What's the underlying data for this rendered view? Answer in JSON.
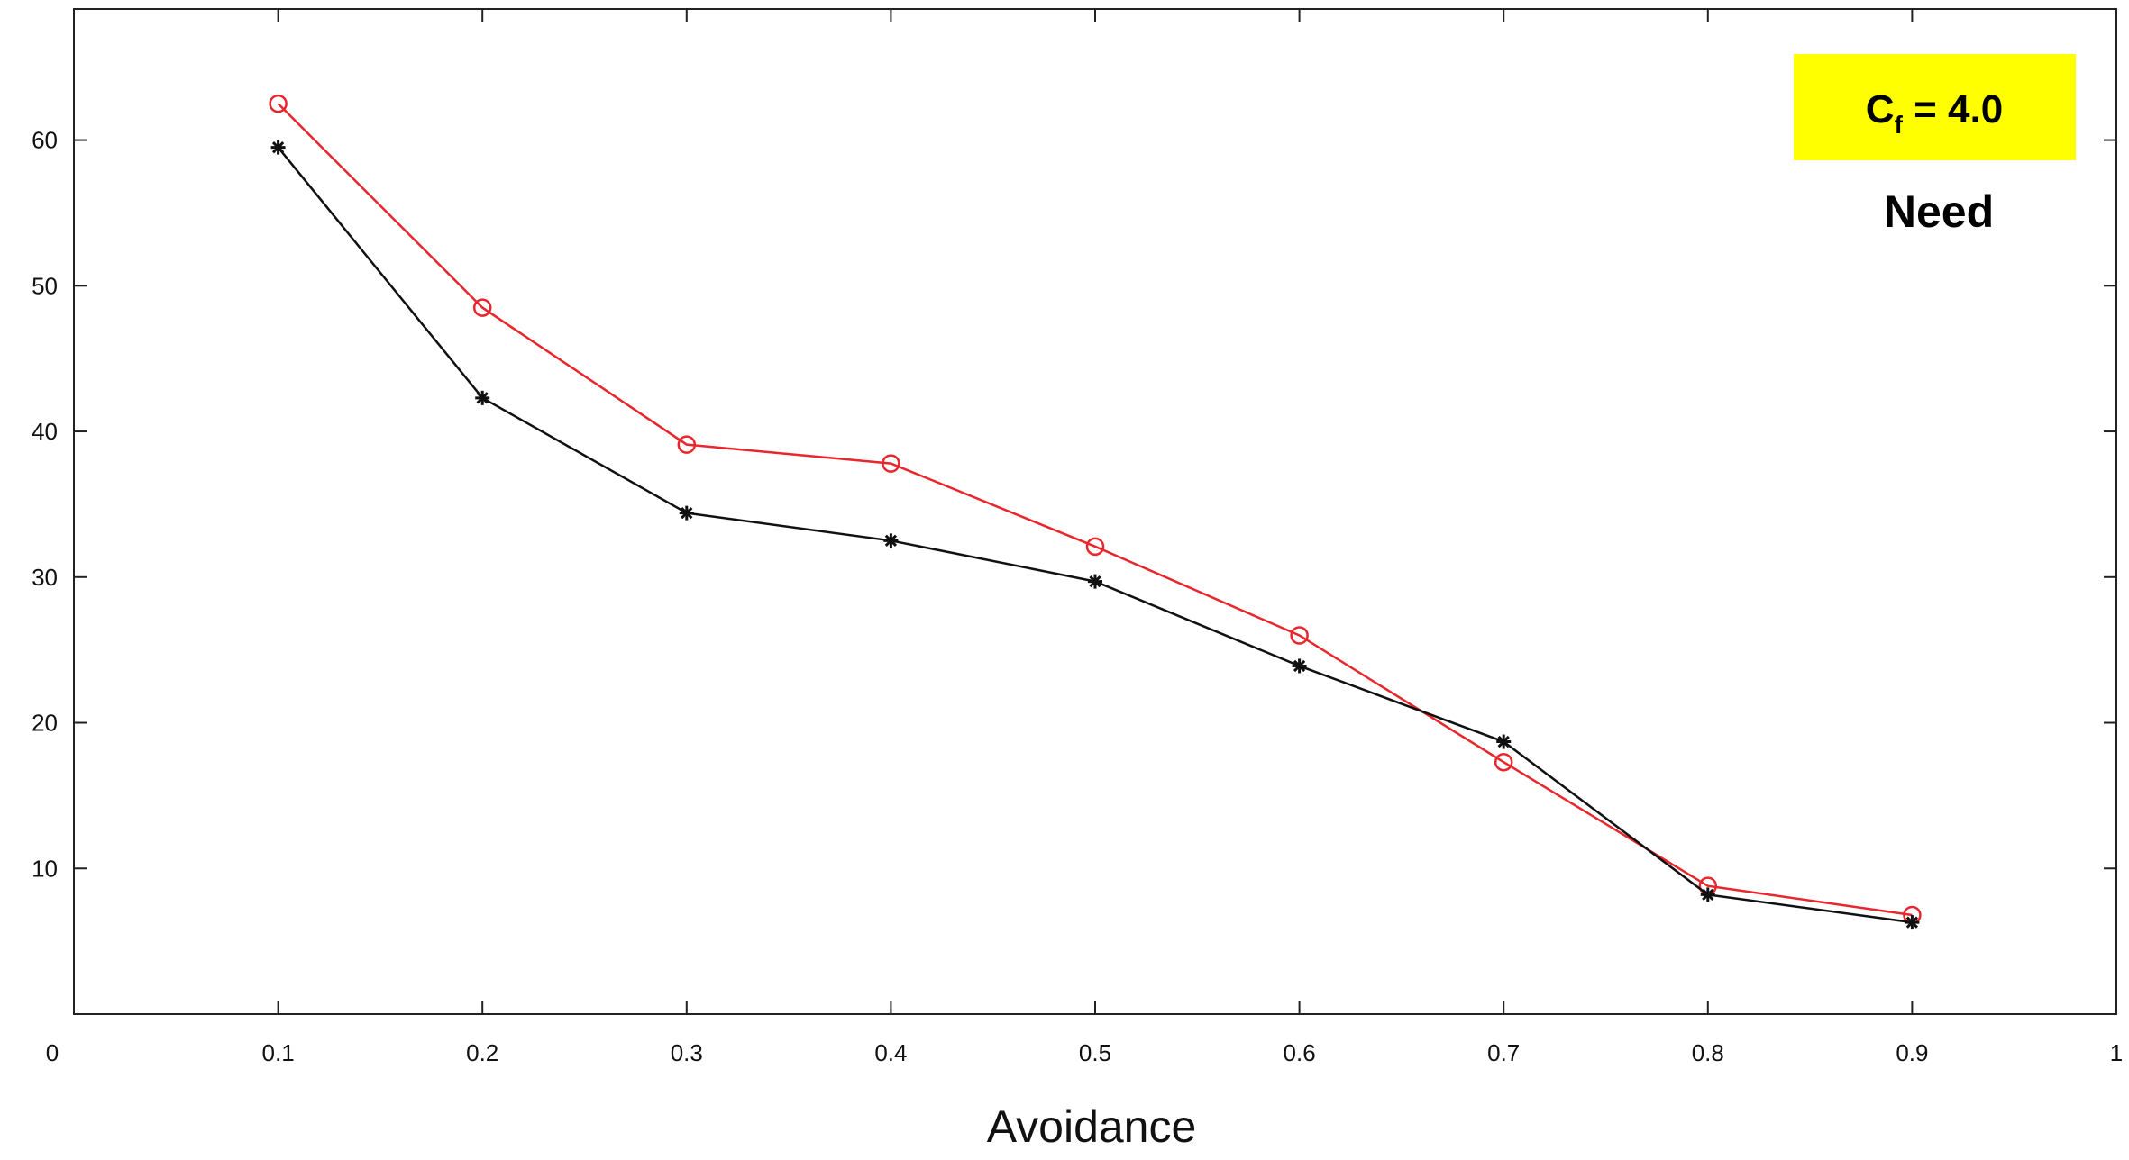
{
  "chart_data": {
    "type": "line",
    "title": "",
    "xlabel": "Avoidance",
    "ylabel": "",
    "xlim": [
      0,
      1
    ],
    "ylim": [
      0,
      69
    ],
    "x_ticks": [
      "0",
      "0.1",
      "0.2",
      "0.3",
      "0.4",
      "0.5",
      "0.6",
      "0.7",
      "0.8",
      "0.9",
      "1"
    ],
    "y_ticks": [
      "10",
      "20",
      "30",
      "40",
      "50",
      "60"
    ],
    "grid": false,
    "x": [
      0.1,
      0.2,
      0.3,
      0.4,
      0.5,
      0.6,
      0.7,
      0.8,
      0.9
    ],
    "series": [
      {
        "color": "#e8262c",
        "marker": "circle",
        "values": [
          62.5,
          48.5,
          39.1,
          37.8,
          32.1,
          26.0,
          17.3,
          8.8,
          6.8
        ]
      },
      {
        "color": "#111111",
        "marker": "star",
        "values": [
          59.5,
          42.3,
          34.4,
          32.5,
          29.7,
          23.9,
          18.7,
          8.2,
          6.3
        ]
      }
    ],
    "annotations": {
      "cf_box": {
        "label_main": "C",
        "label_sub": "f",
        "label_value": " = 4.0",
        "background": "#ffff00"
      },
      "need_label": "Need"
    }
  }
}
